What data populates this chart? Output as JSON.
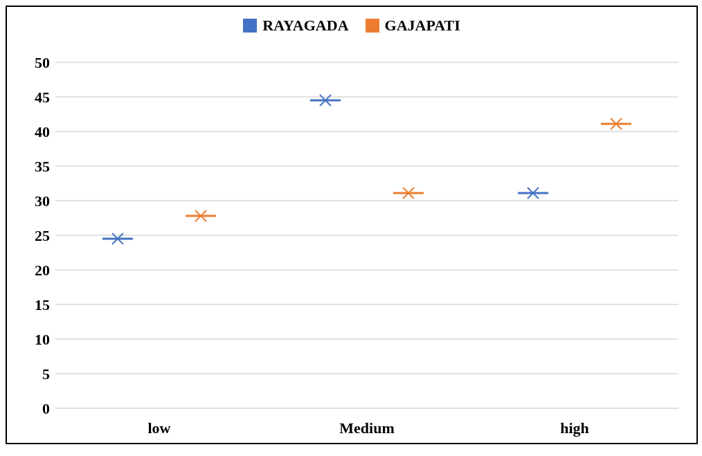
{
  "chart_data": {
    "type": "box",
    "categories": [
      "low",
      "Medium",
      "high"
    ],
    "series": [
      {
        "name": "RAYAGADA",
        "color": "#4472c4",
        "boxes": [
          {
            "low": 24.5,
            "q1": 24.5,
            "median": 24.5,
            "q3": 24.5,
            "high": 24.5,
            "mean": 24.5
          },
          {
            "low": 44.5,
            "q1": 44.5,
            "median": 44.5,
            "q3": 44.5,
            "high": 44.5,
            "mean": 44.5
          },
          {
            "low": 31.1,
            "q1": 31.1,
            "median": 31.1,
            "q3": 31.1,
            "high": 31.1,
            "mean": 31.1
          }
        ]
      },
      {
        "name": "GAJAPATI",
        "color": "#ed7d31",
        "boxes": [
          {
            "low": 27.8,
            "q1": 27.8,
            "median": 27.8,
            "q3": 27.8,
            "high": 27.8,
            "mean": 27.8
          },
          {
            "low": 31.1,
            "q1": 31.1,
            "median": 31.1,
            "q3": 31.1,
            "high": 31.1,
            "mean": 31.1
          },
          {
            "low": 41.1,
            "q1": 41.1,
            "median": 41.1,
            "q3": 41.1,
            "high": 41.1,
            "mean": 41.1
          }
        ]
      }
    ],
    "ylim": [
      0,
      50
    ],
    "yticks": [
      0,
      5,
      10,
      15,
      20,
      25,
      30,
      35,
      40,
      45,
      50
    ],
    "grid": "y",
    "legend": "top",
    "marker": "cross"
  }
}
